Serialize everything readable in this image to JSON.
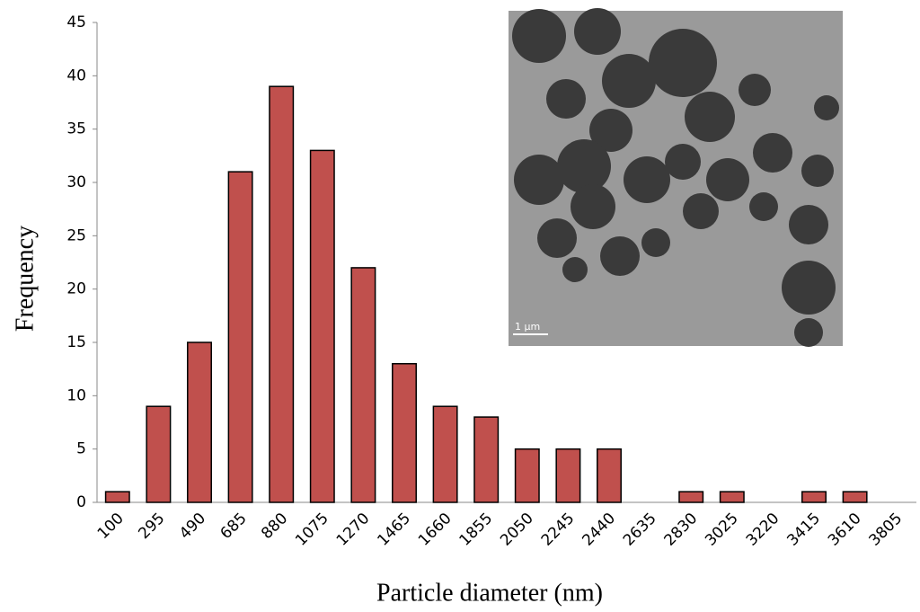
{
  "chart_data": {
    "type": "bar",
    "x_label": "Particle diameter (nm)",
    "y_label": "Frequency",
    "categories": [
      "100",
      "295",
      "490",
      "685",
      "880",
      "1075",
      "1270",
      "1465",
      "1660",
      "1855",
      "2050",
      "2245",
      "2440",
      "2635",
      "2830",
      "3025",
      "3220",
      "3415",
      "3610",
      "3805"
    ],
    "values": [
      1,
      9,
      15,
      31,
      39,
      33,
      22,
      13,
      9,
      8,
      5,
      5,
      5,
      0,
      1,
      1,
      0,
      1,
      1,
      0
    ],
    "color": "#c0504d",
    "ylim": [
      0,
      45
    ],
    "yticks": [
      0,
      5,
      10,
      15,
      20,
      25,
      30,
      35,
      40,
      45
    ],
    "grid": false,
    "inset_scale_label": "1 µm"
  }
}
